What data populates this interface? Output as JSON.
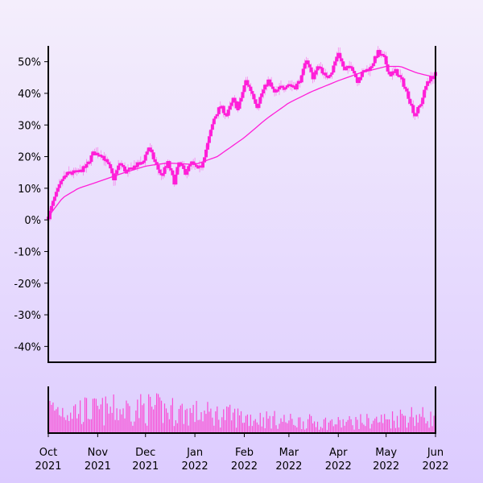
{
  "chart_data": {
    "type": "candlestick",
    "colors": {
      "price": "#ff1fd8",
      "moving_average": "#ff1fd8",
      "volume": "#ff33cc"
    },
    "y_axis": {
      "ticks": [
        50,
        40,
        30,
        20,
        10,
        0,
        -10,
        -20,
        -30,
        -40
      ],
      "tick_labels": [
        "50%",
        "40%",
        "30%",
        "20%",
        "10%",
        "0%",
        "-10%",
        "-20%",
        "-30%",
        "-40%"
      ],
      "ylim": [
        -45,
        55
      ]
    },
    "x_axis": {
      "ticks": [
        {
          "date": "2021-10-01",
          "month": "Oct",
          "year": "2021"
        },
        {
          "date": "2021-11-01",
          "month": "Nov",
          "year": "2021"
        },
        {
          "date": "2021-12-01",
          "month": "Dec",
          "year": "2021"
        },
        {
          "date": "2022-01-01",
          "month": "Jan",
          "year": "2022"
        },
        {
          "date": "2022-02-01",
          "month": "Feb",
          "year": "2022"
        },
        {
          "date": "2022-03-01",
          "month": "Mar",
          "year": "2022"
        },
        {
          "date": "2022-04-01",
          "month": "Apr",
          "year": "2022"
        },
        {
          "date": "2022-05-01",
          "month": "May",
          "year": "2022"
        },
        {
          "date": "2022-06-01",
          "month": "Jun",
          "year": "2022"
        }
      ],
      "xlim": [
        "2021-10-01",
        "2022-06-01"
      ]
    },
    "price_path": [
      [
        "2021-10-01",
        1
      ],
      [
        "2021-10-05",
        7
      ],
      [
        "2021-10-10",
        13
      ],
      [
        "2021-10-14",
        15
      ],
      [
        "2021-10-20",
        15
      ],
      [
        "2021-10-25",
        17
      ],
      [
        "2021-10-29",
        21
      ],
      [
        "2021-11-03",
        21
      ],
      [
        "2021-11-08",
        17
      ],
      [
        "2021-11-11",
        13
      ],
      [
        "2021-11-15",
        18
      ],
      [
        "2021-11-19",
        15
      ],
      [
        "2021-11-24",
        17
      ],
      [
        "2021-11-29",
        18
      ],
      [
        "2021-12-03",
        23
      ],
      [
        "2021-12-08",
        17
      ],
      [
        "2021-12-11",
        14
      ],
      [
        "2021-12-15",
        18
      ],
      [
        "2021-12-19",
        12
      ],
      [
        "2021-12-22",
        18
      ],
      [
        "2021-12-26",
        15
      ],
      [
        "2021-12-30",
        18
      ],
      [
        "2022-01-03",
        16
      ],
      [
        "2022-01-05",
        17
      ],
      [
        "2022-01-09",
        24
      ],
      [
        "2022-01-13",
        32
      ],
      [
        "2022-01-17",
        36
      ],
      [
        "2022-01-21",
        33
      ],
      [
        "2022-01-25",
        38
      ],
      [
        "2022-01-28",
        35
      ],
      [
        "2022-02-02",
        44
      ],
      [
        "2022-02-06",
        40
      ],
      [
        "2022-02-09",
        36
      ],
      [
        "2022-02-12",
        40
      ],
      [
        "2022-02-16",
        44
      ],
      [
        "2022-02-20",
        40
      ],
      [
        "2022-02-24",
        42
      ],
      [
        "2022-03-01",
        43
      ],
      [
        "2022-03-05",
        42
      ],
      [
        "2022-03-09",
        45
      ],
      [
        "2022-03-12",
        51
      ],
      [
        "2022-03-16",
        45
      ],
      [
        "2022-03-20",
        49
      ],
      [
        "2022-03-24",
        45
      ],
      [
        "2022-03-28",
        47
      ],
      [
        "2022-04-01",
        53
      ],
      [
        "2022-04-05",
        47
      ],
      [
        "2022-04-09",
        49
      ],
      [
        "2022-04-13",
        44
      ],
      [
        "2022-04-17",
        47
      ],
      [
        "2022-04-21",
        48
      ],
      [
        "2022-04-26",
        53
      ],
      [
        "2022-04-30",
        51
      ],
      [
        "2022-05-03",
        46
      ],
      [
        "2022-05-07",
        47
      ],
      [
        "2022-05-11",
        44
      ],
      [
        "2022-05-15",
        39
      ],
      [
        "2022-05-19",
        33
      ],
      [
        "2022-05-23",
        37
      ],
      [
        "2022-05-27",
        44
      ],
      [
        "2022-06-01",
        46
      ]
    ],
    "moving_average": [
      [
        "2021-10-01",
        1
      ],
      [
        "2021-10-10",
        7
      ],
      [
        "2021-10-20",
        10
      ],
      [
        "2021-11-01",
        12
      ],
      [
        "2021-11-15",
        14.5
      ],
      [
        "2021-12-01",
        17
      ],
      [
        "2021-12-15",
        18
      ],
      [
        "2022-01-01",
        17.5
      ],
      [
        "2022-01-15",
        20
      ],
      [
        "2022-02-01",
        26
      ],
      [
        "2022-02-15",
        32
      ],
      [
        "2022-03-01",
        37
      ],
      [
        "2022-03-15",
        40.5
      ],
      [
        "2022-04-01",
        44
      ],
      [
        "2022-04-15",
        46.5
      ],
      [
        "2022-05-01",
        48.5
      ],
      [
        "2022-05-10",
        48.5
      ],
      [
        "2022-05-20",
        46.5
      ],
      [
        "2022-06-01",
        45
      ]
    ],
    "volume_profile": [
      [
        "2021-10-01",
        0.6
      ],
      [
        "2021-11-01",
        0.55
      ],
      [
        "2021-12-01",
        0.62
      ],
      [
        "2022-01-01",
        0.5
      ],
      [
        "2022-02-01",
        0.4
      ],
      [
        "2022-03-01",
        0.3
      ],
      [
        "2022-04-01",
        0.25
      ],
      [
        "2022-05-01",
        0.33
      ],
      [
        "2022-05-15",
        0.45
      ],
      [
        "2022-06-01",
        0.35
      ]
    ]
  }
}
